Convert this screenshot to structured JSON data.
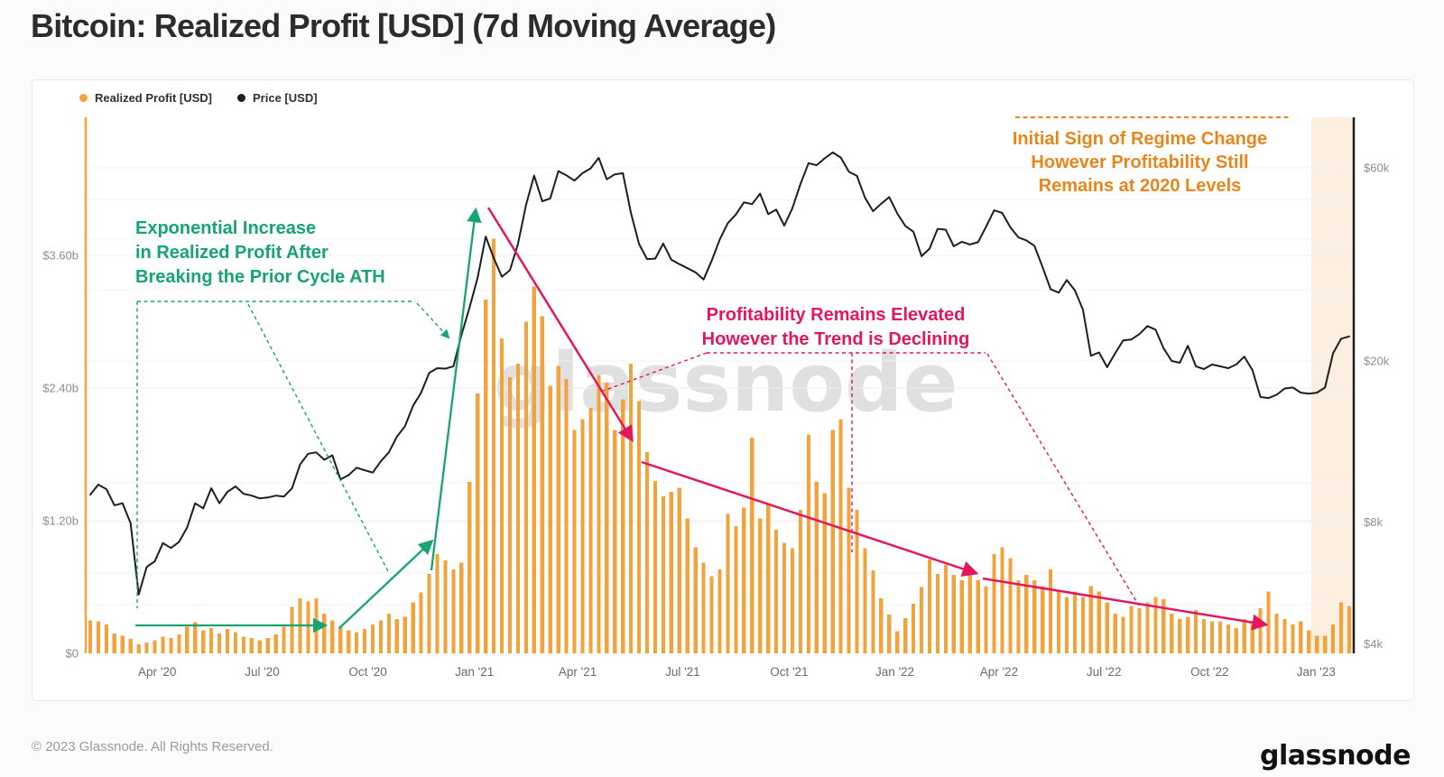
{
  "page": {
    "title": "Bitcoin: Realized Profit [USD] (7d Moving Average)",
    "watermark": "glassnode",
    "footer_left": "© 2023 Glassnode. All Rights Reserved.",
    "footer_logo": "glassnode"
  },
  "legend": {
    "items": [
      {
        "label": "Realized Profit [USD]",
        "color": "#F3A33C"
      },
      {
        "label": "Price [USD]",
        "color": "#1E1E1E"
      }
    ]
  },
  "annotations": {
    "green": {
      "color": "#16A46F",
      "lines": [
        "Exponential Increase",
        "in Realized Profit After",
        "Breaking the Prior Cycle ATH"
      ]
    },
    "pink": {
      "color": "#E2175F",
      "lines": [
        "Profitability Remains Elevated",
        "However the Trend is Declining"
      ]
    },
    "orange": {
      "color": "#E8861C",
      "lines": [
        "Initial Sign of Regime Change",
        "However Profitability Still",
        "Remains at 2020 Levels"
      ]
    }
  },
  "chart_data": {
    "type": "bar+line",
    "title": "Bitcoin: Realized Profit [USD] (7d Moving Average)",
    "x_start_week": "2020-02-03",
    "x_end_week": "2023-01-30",
    "x_unit": "weeks",
    "grid": "on",
    "legend_position": "top-left",
    "bar_color": "#F3A33C",
    "line_color": "#1E1E1E",
    "y_left": {
      "label": "Realized Profit [USD]",
      "unit": "USD billions",
      "scale": "linear",
      "range": [
        0,
        4.85
      ],
      "ticks": [
        {
          "label": "$0",
          "value": 0
        },
        {
          "label": "$1.20b",
          "value": 1.2
        },
        {
          "label": "$2.40b",
          "value": 2.4
        },
        {
          "label": "$3.60b",
          "value": 3.6
        }
      ],
      "gridlines": [
        1.2,
        2.4,
        3.6
      ]
    },
    "y_right": {
      "label": "Price [USD]",
      "unit": "USD",
      "scale": "log",
      "range": [
        3900,
        75000
      ],
      "ticks": [
        {
          "label": "$4k",
          "value": 4000
        },
        {
          "label": "$8k",
          "value": 8000
        },
        {
          "label": "$20k",
          "value": 20000
        },
        {
          "label": "$60k",
          "value": 60000
        }
      ],
      "gridlines": [
        4000,
        5000,
        6000,
        8000,
        10000,
        20000,
        30000,
        40000,
        50000,
        60000
      ]
    },
    "x_ticks": [
      {
        "label": "Apr '20",
        "index": 8.3
      },
      {
        "label": "Jul '20",
        "index": 21.3
      },
      {
        "label": "Oct '20",
        "index": 34.4
      },
      {
        "label": "Jan '21",
        "index": 47.6
      },
      {
        "label": "Apr '21",
        "index": 60.4
      },
      {
        "label": "Jul '21",
        "index": 73.4
      },
      {
        "label": "Oct '21",
        "index": 86.6
      },
      {
        "label": "Jan '22",
        "index": 99.7
      },
      {
        "label": "Apr '22",
        "index": 112.6
      },
      {
        "label": "Jul '22",
        "index": 125.6
      },
      {
        "label": "Oct '22",
        "index": 138.7
      },
      {
        "label": "Jan '23",
        "index": 151.9
      }
    ],
    "highlight_region": {
      "from_index": 151.3,
      "to_index": 156.4,
      "color": "#FBE5CC"
    },
    "series": [
      {
        "name": "Realized Profit [USD]",
        "type": "bar",
        "unit": "USD billions",
        "values": [
          0.3,
          0.29,
          0.26,
          0.18,
          0.16,
          0.13,
          0.08,
          0.1,
          0.12,
          0.15,
          0.14,
          0.17,
          0.24,
          0.28,
          0.21,
          0.23,
          0.18,
          0.22,
          0.19,
          0.15,
          0.14,
          0.12,
          0.14,
          0.17,
          0.24,
          0.42,
          0.5,
          0.47,
          0.5,
          0.36,
          0.3,
          0.24,
          0.21,
          0.19,
          0.22,
          0.26,
          0.3,
          0.36,
          0.31,
          0.33,
          0.46,
          0.55,
          0.72,
          0.9,
          0.84,
          0.76,
          0.82,
          1.55,
          2.35,
          3.2,
          3.75,
          2.85,
          2.5,
          2.62,
          3.0,
          3.32,
          3.05,
          2.42,
          2.6,
          2.48,
          2.02,
          2.12,
          2.22,
          2.52,
          2.45,
          2.02,
          2.3,
          2.62,
          2.28,
          1.82,
          1.56,
          1.42,
          1.46,
          1.5,
          1.22,
          0.96,
          0.82,
          0.7,
          0.76,
          1.26,
          1.15,
          1.32,
          1.95,
          1.22,
          1.36,
          1.12,
          1.0,
          0.95,
          1.3,
          1.98,
          1.55,
          1.45,
          2.02,
          2.12,
          1.5,
          1.3,
          0.95,
          0.75,
          0.5,
          0.35,
          0.2,
          0.32,
          0.45,
          0.6,
          0.85,
          0.72,
          0.8,
          0.71,
          0.66,
          0.76,
          0.66,
          0.61,
          0.9,
          0.96,
          0.86,
          0.66,
          0.71,
          0.66,
          0.61,
          0.76,
          0.56,
          0.51,
          0.56,
          0.51,
          0.61,
          0.56,
          0.46,
          0.36,
          0.33,
          0.43,
          0.41,
          0.46,
          0.51,
          0.49,
          0.36,
          0.31,
          0.33,
          0.39,
          0.31,
          0.29,
          0.29,
          0.26,
          0.23,
          0.31,
          0.29,
          0.41,
          0.56,
          0.36,
          0.31,
          0.26,
          0.29,
          0.21,
          0.16,
          0.16,
          0.26,
          0.46,
          0.43
        ]
      },
      {
        "name": "Price [USD]",
        "type": "line",
        "unit": "USD",
        "values": [
          9350,
          9900,
          9650,
          8800,
          8900,
          7950,
          5300,
          6200,
          6400,
          7100,
          6900,
          7150,
          7750,
          8900,
          8650,
          9700,
          8900,
          9500,
          9800,
          9400,
          9300,
          9150,
          9200,
          9300,
          9250,
          9700,
          11100,
          11800,
          11900,
          11400,
          11700,
          10200,
          10450,
          10900,
          10750,
          10600,
          11300,
          11900,
          13000,
          13800,
          15500,
          16700,
          18700,
          19200,
          19150,
          19400,
          23200,
          27100,
          32100,
          40600,
          35900,
          32300,
          33500,
          38900,
          48600,
          57400,
          49600,
          50400,
          58900,
          57500,
          55800,
          58200,
          59800,
          63500,
          56200,
          57800,
          58200,
          46400,
          38900,
          35700,
          35800,
          39000,
          35600,
          34700,
          33900,
          33100,
          31800,
          35400,
          39900,
          43800,
          46000,
          49300,
          48800,
          51800,
          46100,
          47300,
          43200,
          47700,
          54700,
          61600,
          60900,
          63300,
          65500,
          63600,
          58700,
          57300,
          50600,
          46900,
          48900,
          50800,
          46300,
          43100,
          41700,
          36300,
          37900,
          42400,
          42200,
          38400,
          39400,
          38800,
          39300,
          42900,
          47100,
          46400,
          42800,
          40400,
          39700,
          38500,
          34100,
          30100,
          29500,
          31700,
          29900,
          26800,
          20600,
          21000,
          19300,
          20900,
          22500,
          22600,
          23300,
          24400,
          23900,
          21500,
          20000,
          19800,
          21800,
          19400,
          19100,
          19600,
          19400,
          19200,
          19600,
          20500,
          19000,
          16300,
          16200,
          16500,
          17100,
          17200,
          16700,
          16600,
          16700,
          17200,
          20900,
          22700,
          23000
        ]
      }
    ]
  }
}
